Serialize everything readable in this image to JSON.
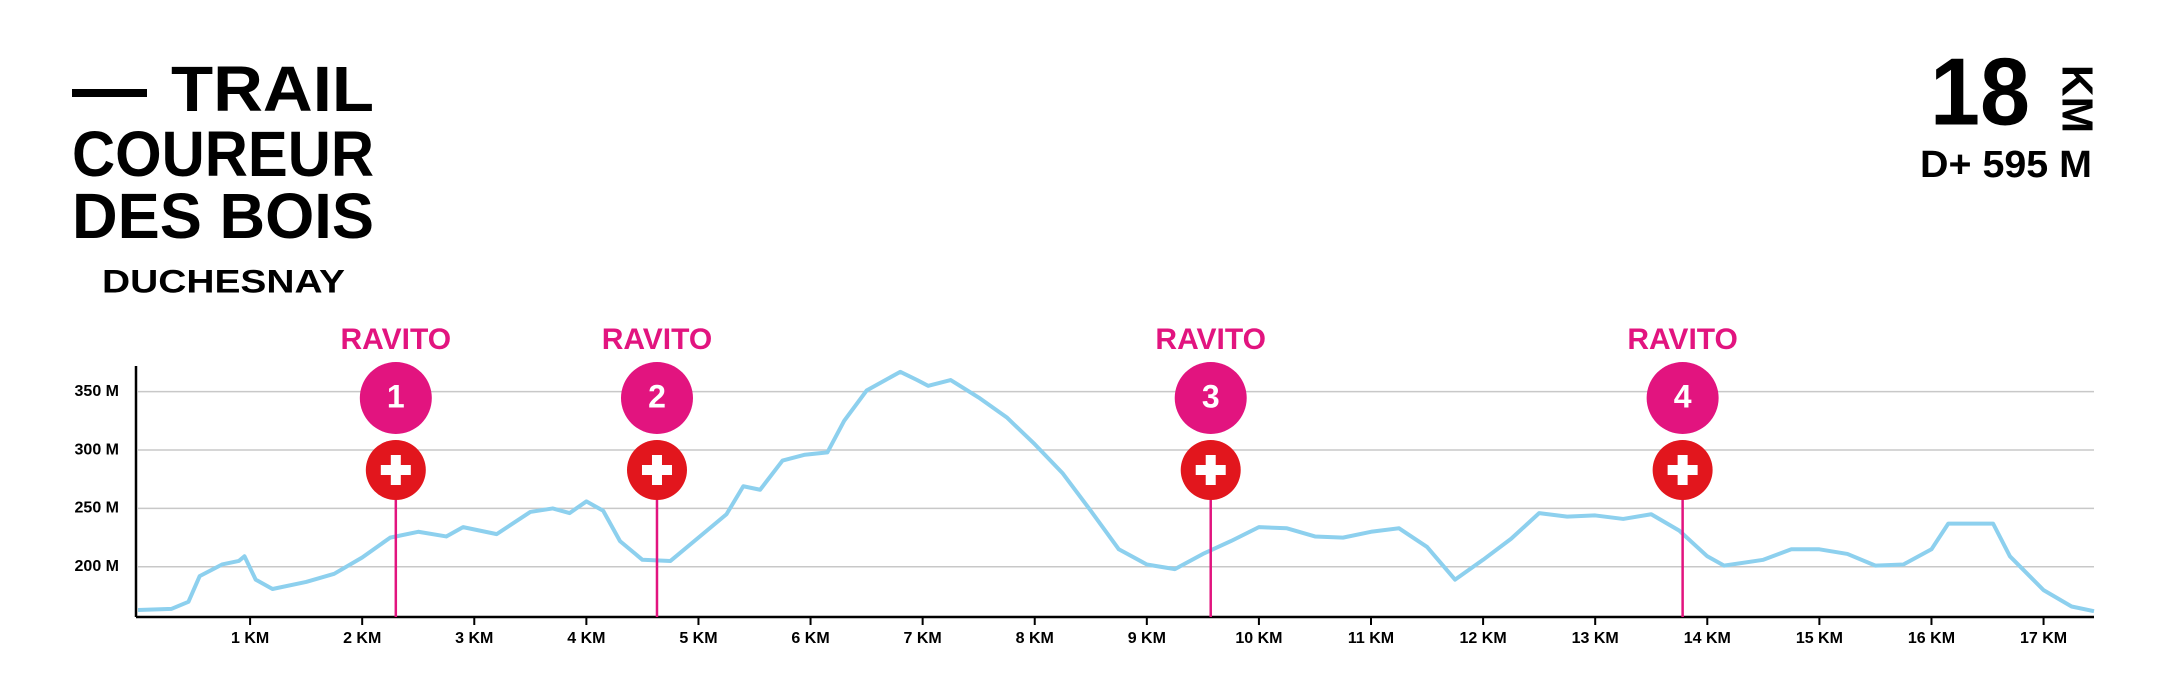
{
  "chart_data": {
    "type": "line",
    "title_lines": [
      "TRAIL",
      "COUREUR",
      "DES BOIS"
    ],
    "subtitle": "DUCHESNAY",
    "distance": 18,
    "distance_unit": "KM",
    "elevation_gain": "D+ 595 M",
    "color": "#8dd0ee",
    "marker_color": "#e2147f",
    "aid_color": "#e2161d",
    "grid": true,
    "x": [
      0,
      0.3,
      0.45,
      0.55,
      0.75,
      0.9,
      0.95,
      1.05,
      1.2,
      1.5,
      1.75,
      2.0,
      2.25,
      2.5,
      2.75,
      2.9,
      3.2,
      3.5,
      3.7,
      3.85,
      4.0,
      4.15,
      4.3,
      4.5,
      4.75,
      5.0,
      5.25,
      5.4,
      5.55,
      5.75,
      5.95,
      6.15,
      6.3,
      6.5,
      6.8,
      6.95,
      7.05,
      7.25,
      7.5,
      7.75,
      8.0,
      8.25,
      8.5,
      8.75,
      9.0,
      9.25,
      9.5,
      9.75,
      10.0,
      10.25,
      10.5,
      10.75,
      11.0,
      11.25,
      11.5,
      11.75,
      12.0,
      12.25,
      12.5,
      12.75,
      13.0,
      13.25,
      13.5,
      13.75,
      14.0,
      14.15,
      14.5,
      14.75,
      15.0,
      15.25,
      15.5,
      15.75,
      16.0,
      16.15,
      16.4,
      16.55,
      16.7,
      17.0,
      17.25,
      17.45
    ],
    "values": [
      163,
      164,
      170,
      192,
      202,
      205,
      209,
      189,
      181,
      187,
      194,
      208,
      225,
      230,
      226,
      234,
      228,
      247,
      250,
      246,
      256,
      248,
      222,
      206,
      205,
      225,
      245,
      269,
      266,
      291,
      296,
      298,
      325,
      351,
      367,
      360,
      355,
      360,
      345,
      328,
      305,
      280,
      248,
      215,
      202,
      198,
      211,
      222,
      234,
      233,
      226,
      225,
      230,
      233,
      217,
      189,
      206,
      224,
      246,
      243,
      244,
      241,
      245,
      231,
      209,
      201,
      206,
      215,
      215,
      211,
      201,
      202,
      215,
      237,
      237,
      237,
      209,
      180,
      166,
      162
    ],
    "xlim": [
      0,
      17.45
    ],
    "ylim": [
      157,
      372
    ],
    "xticks": [
      {
        "value": 1,
        "label": "1 KM"
      },
      {
        "value": 2,
        "label": "2 KM"
      },
      {
        "value": 3,
        "label": "3 KM"
      },
      {
        "value": 4,
        "label": "4 KM"
      },
      {
        "value": 5,
        "label": "5 KM"
      },
      {
        "value": 6,
        "label": "6 KM"
      },
      {
        "value": 7,
        "label": "7 KM"
      },
      {
        "value": 8,
        "label": "8 KM"
      },
      {
        "value": 9,
        "label": "9 KM"
      },
      {
        "value": 10,
        "label": "10 KM"
      },
      {
        "value": 11,
        "label": "11 KM"
      },
      {
        "value": 12,
        "label": "12 KM"
      },
      {
        "value": 13,
        "label": "13 KM"
      },
      {
        "value": 14,
        "label": "14 KM"
      },
      {
        "value": 15,
        "label": "15 KM"
      },
      {
        "value": 16,
        "label": "16 KM"
      },
      {
        "value": 17,
        "label": "17 KM"
      }
    ],
    "yticks": [
      {
        "value": 200,
        "label": "200 M"
      },
      {
        "value": 250,
        "label": "250 M"
      },
      {
        "value": 300,
        "label": "300 M"
      },
      {
        "value": 350,
        "label": "350 M"
      }
    ],
    "annotations": [
      {
        "x": 2.3,
        "label": "RAVITO",
        "number": 1
      },
      {
        "x": 4.63,
        "label": "RAVITO",
        "number": 2
      },
      {
        "x": 9.57,
        "label": "RAVITO",
        "number": 3
      },
      {
        "x": 13.78,
        "label": "RAVITO",
        "number": 4
      }
    ]
  }
}
